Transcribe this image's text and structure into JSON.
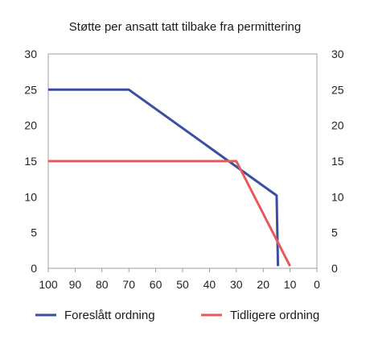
{
  "chart_data": {
    "type": "line",
    "title": "Støtte per ansatt tatt tilbake fra permittering",
    "xlabel": "",
    "ylabel": "",
    "xlim": [
      100,
      0
    ],
    "ylim": [
      0,
      30
    ],
    "x_ticks": [
      100,
      90,
      80,
      70,
      60,
      50,
      40,
      30,
      20,
      10,
      0
    ],
    "y_ticks": [
      0,
      5,
      10,
      15,
      20,
      25,
      30
    ],
    "grid": false,
    "legend": "bottom",
    "series": [
      {
        "name": "Foreslått ordning",
        "color": "#3a4fa0",
        "points": [
          [
            100,
            25
          ],
          [
            70,
            25
          ],
          [
            15,
            10.2
          ],
          [
            14.5,
            0.3
          ]
        ]
      },
      {
        "name": "Tidligere ordning",
        "color": "#e8595c",
        "points": [
          [
            100,
            15
          ],
          [
            30,
            15
          ],
          [
            10,
            0.3
          ]
        ]
      }
    ]
  }
}
